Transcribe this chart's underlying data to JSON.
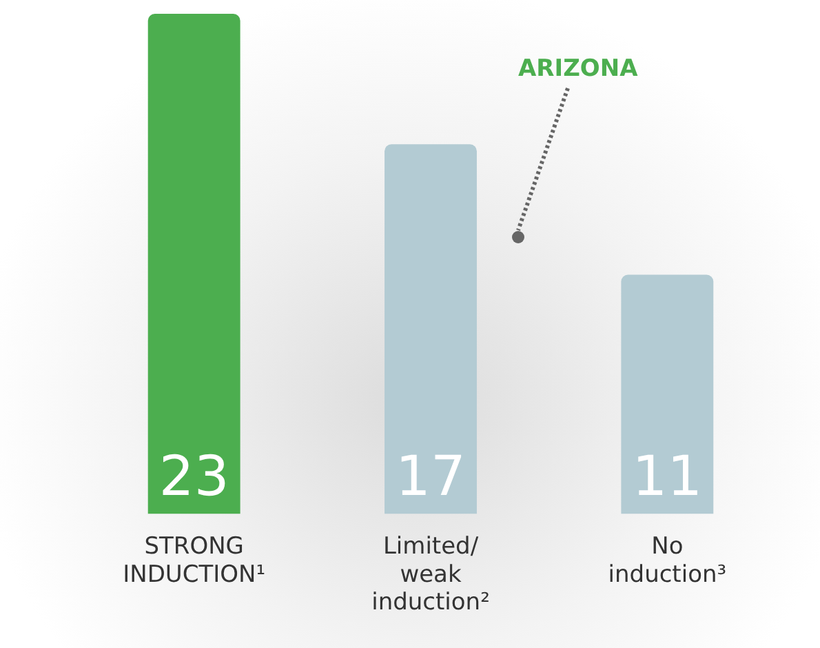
{
  "chart_data": {
    "type": "bar",
    "categories": [
      "STRONG INDUCTION¹",
      "Limited/ weak induction²",
      "No induction³"
    ],
    "values": [
      23,
      17,
      11
    ],
    "colors": [
      "#4cae4f",
      "#b3cbd3",
      "#b3cbd3"
    ],
    "ylim": [
      0,
      23
    ],
    "data_labels": true,
    "tick_labels": "x",
    "grid": false,
    "legend": false,
    "annotations": [
      "ARIZONA"
    ]
  }
}
